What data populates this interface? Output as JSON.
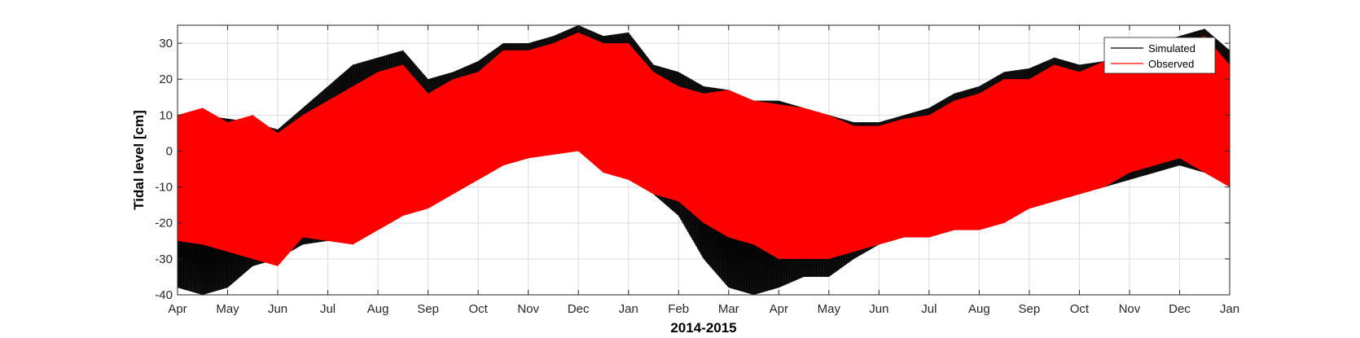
{
  "chart_data": {
    "type": "line",
    "title": "",
    "xlabel": "2014-2015",
    "ylabel": "Tidal level [cm]",
    "ylim": [
      -40,
      35
    ],
    "yticks": [
      -40,
      -30,
      -20,
      -10,
      0,
      10,
      20,
      30
    ],
    "xlim_months": [
      0,
      21
    ],
    "xticks": [
      "Apr",
      "May",
      "Jun",
      "Jul",
      "Aug",
      "Sep",
      "Oct",
      "Nov",
      "Dec",
      "Jan",
      "Feb",
      "Mar",
      "Apr",
      "May",
      "Jun",
      "Jul",
      "Aug",
      "Sep",
      "Oct",
      "Nov",
      "Dec",
      "Jan"
    ],
    "grid": true,
    "legend_position": "top-right",
    "series": [
      {
        "name": "Simulated",
        "color": "#000000",
        "x_months": [
          0.0,
          0.5,
          1.0,
          1.5,
          2.0,
          2.5,
          3.0,
          3.5,
          4.0,
          4.5,
          5.0,
          5.5,
          6.0,
          6.5,
          7.0,
          7.5,
          8.0,
          8.5,
          9.0,
          9.5,
          10.0,
          10.5,
          11.0,
          11.5,
          12.0,
          12.5,
          13.0,
          13.5,
          14.0,
          14.5,
          15.0,
          15.5,
          16.0,
          16.5,
          17.0,
          17.5,
          18.0,
          18.5,
          19.0,
          19.5,
          20.0,
          20.5,
          21.0
        ],
        "upper": [
          9,
          10,
          9,
          8,
          6,
          12,
          18,
          24,
          26,
          28,
          20,
          22,
          25,
          30,
          30,
          32,
          35,
          32,
          33,
          24,
          22,
          18,
          17,
          14,
          14,
          12,
          10,
          8,
          8,
          10,
          12,
          16,
          18,
          22,
          23,
          26,
          24,
          25,
          28,
          30,
          32,
          34,
          28
        ],
        "lower": [
          -38,
          -40,
          -38,
          -32,
          -30,
          -26,
          -25,
          -24,
          -22,
          -18,
          -14,
          -10,
          -8,
          -4,
          -2,
          0,
          0,
          -2,
          -4,
          -12,
          -18,
          -30,
          -38,
          -40,
          -38,
          -35,
          -35,
          -30,
          -26,
          -24,
          -24,
          -22,
          -20,
          -18,
          -16,
          -14,
          -12,
          -10,
          -8,
          -6,
          -4,
          -6,
          -8
        ]
      },
      {
        "name": "Observed",
        "color": "#ff0000",
        "x_months": [
          0.0,
          0.5,
          1.0,
          1.5,
          2.0,
          2.5,
          3.0,
          3.5,
          4.0,
          4.5,
          5.0,
          5.5,
          6.0,
          6.5,
          7.0,
          7.5,
          8.0,
          8.5,
          9.0,
          9.5,
          10.0,
          10.5,
          11.0,
          11.5,
          12.0,
          12.5,
          13.0,
          13.5,
          14.0,
          14.5,
          15.0,
          15.5,
          16.0,
          16.5,
          17.0,
          17.5,
          18.0,
          18.5,
          19.0,
          19.5,
          20.0,
          20.5,
          21.0
        ],
        "upper": [
          10,
          12,
          8,
          10,
          5,
          10,
          14,
          18,
          22,
          24,
          16,
          20,
          22,
          28,
          28,
          30,
          33,
          30,
          30,
          22,
          18,
          16,
          17,
          14,
          13,
          12,
          10,
          7,
          7,
          9,
          10,
          14,
          16,
          20,
          20,
          24,
          22,
          25,
          26,
          28,
          30,
          32,
          24
        ],
        "lower": [
          -25,
          -26,
          -28,
          -30,
          -32,
          -24,
          -25,
          -26,
          -22,
          -18,
          -16,
          -12,
          -8,
          -4,
          -2,
          -1,
          0,
          -6,
          -8,
          -12,
          -14,
          -20,
          -24,
          -26,
          -30,
          -30,
          -30,
          -28,
          -26,
          -24,
          -24,
          -22,
          -22,
          -20,
          -16,
          -14,
          -12,
          -10,
          -6,
          -4,
          -2,
          -6,
          -10
        ]
      }
    ]
  }
}
